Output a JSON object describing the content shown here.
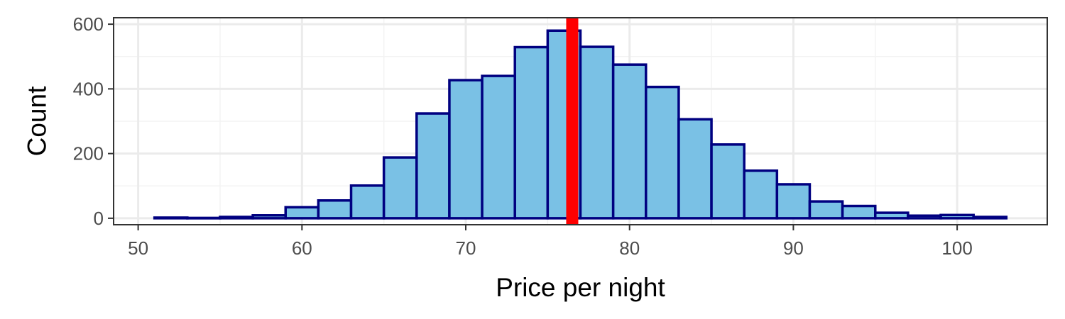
{
  "chart_data": {
    "type": "bar",
    "title": "",
    "xlabel": "Price per night",
    "ylabel": "Count",
    "xlim": [
      48.5,
      105.5
    ],
    "ylim": [
      -20,
      620
    ],
    "bin_width": 2,
    "bins": [
      {
        "x0": 51,
        "x1": 53,
        "count": 2
      },
      {
        "x0": 53,
        "x1": 55,
        "count": 1
      },
      {
        "x0": 55,
        "x1": 57,
        "count": 4
      },
      {
        "x0": 57,
        "x1": 59,
        "count": 9
      },
      {
        "x0": 59,
        "x1": 61,
        "count": 34
      },
      {
        "x0": 61,
        "x1": 63,
        "count": 55
      },
      {
        "x0": 63,
        "x1": 65,
        "count": 101
      },
      {
        "x0": 65,
        "x1": 67,
        "count": 188
      },
      {
        "x0": 67,
        "x1": 69,
        "count": 324
      },
      {
        "x0": 69,
        "x1": 71,
        "count": 427
      },
      {
        "x0": 71,
        "x1": 73,
        "count": 440
      },
      {
        "x0": 73,
        "x1": 75,
        "count": 529
      },
      {
        "x0": 75,
        "x1": 77,
        "count": 580
      },
      {
        "x0": 77,
        "x1": 79,
        "count": 530
      },
      {
        "x0": 79,
        "x1": 81,
        "count": 475
      },
      {
        "x0": 81,
        "x1": 83,
        "count": 406
      },
      {
        "x0": 83,
        "x1": 85,
        "count": 306
      },
      {
        "x0": 85,
        "x1": 87,
        "count": 228
      },
      {
        "x0": 87,
        "x1": 89,
        "count": 147
      },
      {
        "x0": 89,
        "x1": 91,
        "count": 105
      },
      {
        "x0": 91,
        "x1": 93,
        "count": 52
      },
      {
        "x0": 93,
        "x1": 95,
        "count": 38
      },
      {
        "x0": 95,
        "x1": 97,
        "count": 17
      },
      {
        "x0": 97,
        "x1": 99,
        "count": 8
      },
      {
        "x0": 99,
        "x1": 101,
        "count": 10
      },
      {
        "x0": 101,
        "x1": 103,
        "count": 4
      }
    ],
    "x_ticks": [
      50,
      60,
      70,
      80,
      90,
      100
    ],
    "y_ticks": [
      0,
      200,
      400,
      600
    ],
    "reference_line": {
      "x": 76.5,
      "color": "#ff0000"
    },
    "grid": true,
    "legend": "none",
    "colors": {
      "bar_fill": "#7ac1e5",
      "bar_stroke": "#000080",
      "grid_major": "#ebebeb",
      "grid_minor": "#f3f3f3",
      "panel_border": "#333333",
      "tick_text": "#4d4d4d"
    }
  }
}
